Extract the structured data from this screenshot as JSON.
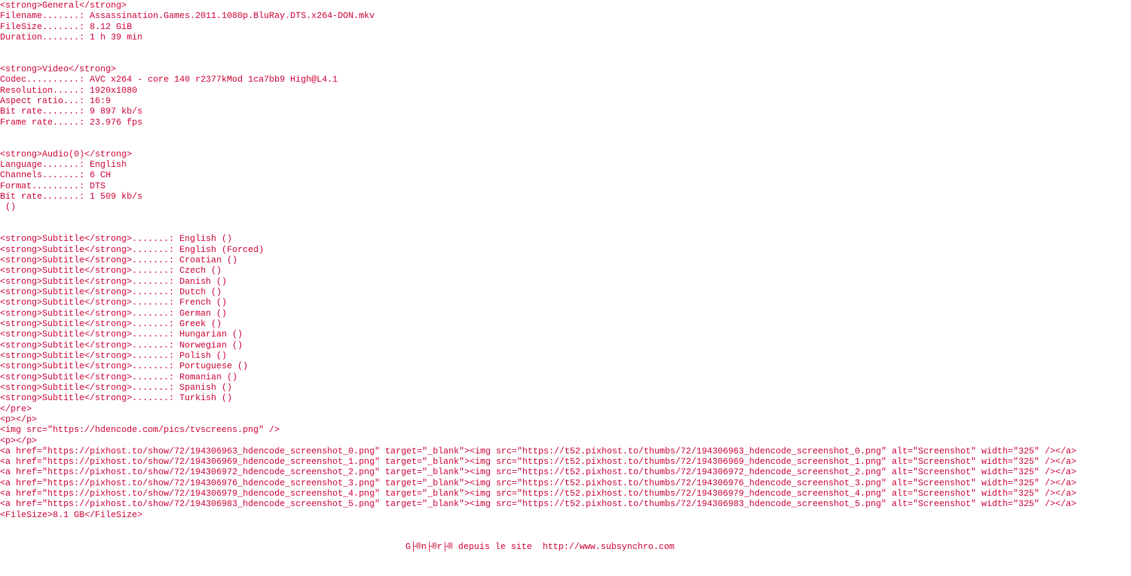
{
  "sections": [
    {
      "lines": [
        "<strong>General</strong>",
        "Filename.......: Assassination.Games.2011.1080p.BluRay.DTS.x264-DON.mkv",
        "FileSize.......: 8.12 GiB",
        "Duration.......: 1 h 39 min"
      ]
    },
    {
      "lines": [
        "<strong>Video</strong>",
        "Codec..........: AVC x264 - core 140 r2377kMod 1ca7bb9 High@L4.1",
        "Resolution.....: 1920x1080",
        "Aspect ratio...: 16:9",
        "Bit rate.......: 9 897 kb/s",
        "Frame rate.....: 23.976 fps"
      ]
    },
    {
      "lines": [
        "<strong>Audio(0)</strong>",
        "Language.......: English",
        "Channels.......: 6 CH",
        "Format.........: DTS",
        "Bit rate.......: 1 509 kb/s",
        " ()"
      ]
    },
    {
      "lines": [
        "<strong>Subtitle</strong>.......: English ()",
        "<strong>Subtitle</strong>.......: English (Forced)",
        "<strong>Subtitle</strong>.......: Croatian ()",
        "<strong>Subtitle</strong>.......: Czech ()",
        "<strong>Subtitle</strong>.......: Danish ()",
        "<strong>Subtitle</strong>.......: Dutch ()",
        "<strong>Subtitle</strong>.......: French ()",
        "<strong>Subtitle</strong>.......: German ()",
        "<strong>Subtitle</strong>.......: Greek ()",
        "<strong>Subtitle</strong>.......: Hungarian ()",
        "<strong>Subtitle</strong>.......: Norwegian ()",
        "<strong>Subtitle</strong>.......: Polish ()",
        "<strong>Subtitle</strong>.......: Portuguese ()",
        "<strong>Subtitle</strong>.......: Romanian ()",
        "<strong>Subtitle</strong>.......: Spanish ()",
        "<strong>Subtitle</strong>.......: Turkish ()",
        "</pre>",
        "<p></p>",
        "<img src=\"https://hdencode.com/pics/tvscreens.png\" />",
        "<p></p>",
        "<a href=\"https://pixhost.to/show/72/194306963_hdencode_screenshot_0.png\" target=\"_blank\"><img src=\"https://t52.pixhost.to/thumbs/72/194306963_hdencode_screenshot_0.png\" alt=\"Screenshot\" width=\"325\" /></a>",
        "<a href=\"https://pixhost.to/show/72/194306969_hdencode_screenshot_1.png\" target=\"_blank\"><img src=\"https://t52.pixhost.to/thumbs/72/194306969_hdencode_screenshot_1.png\" alt=\"Screenshot\" width=\"325\" /></a>",
        "<a href=\"https://pixhost.to/show/72/194306972_hdencode_screenshot_2.png\" target=\"_blank\"><img src=\"https://t52.pixhost.to/thumbs/72/194306972_hdencode_screenshot_2.png\" alt=\"Screenshot\" width=\"325\" /></a>",
        "<a href=\"https://pixhost.to/show/72/194306976_hdencode_screenshot_3.png\" target=\"_blank\"><img src=\"https://t52.pixhost.to/thumbs/72/194306976_hdencode_screenshot_3.png\" alt=\"Screenshot\" width=\"325\" /></a>",
        "<a href=\"https://pixhost.to/show/72/194306979_hdencode_screenshot_4.png\" target=\"_blank\"><img src=\"https://t52.pixhost.to/thumbs/72/194306979_hdencode_screenshot_4.png\" alt=\"Screenshot\" width=\"325\" /></a>",
        "<a href=\"https://pixhost.to/show/72/194306983_hdencode_screenshot_5.png\" target=\"_blank\"><img src=\"https://t52.pixhost.to/thumbs/72/194306983_hdencode_screenshot_5.png\" alt=\"Screenshot\" width=\"325\" /></a>",
        "<FileSize>8.1 GB</FileSize>"
      ]
    }
  ],
  "footer": "G├®n├®r├® depuis le site  http://www.subsynchro.com"
}
